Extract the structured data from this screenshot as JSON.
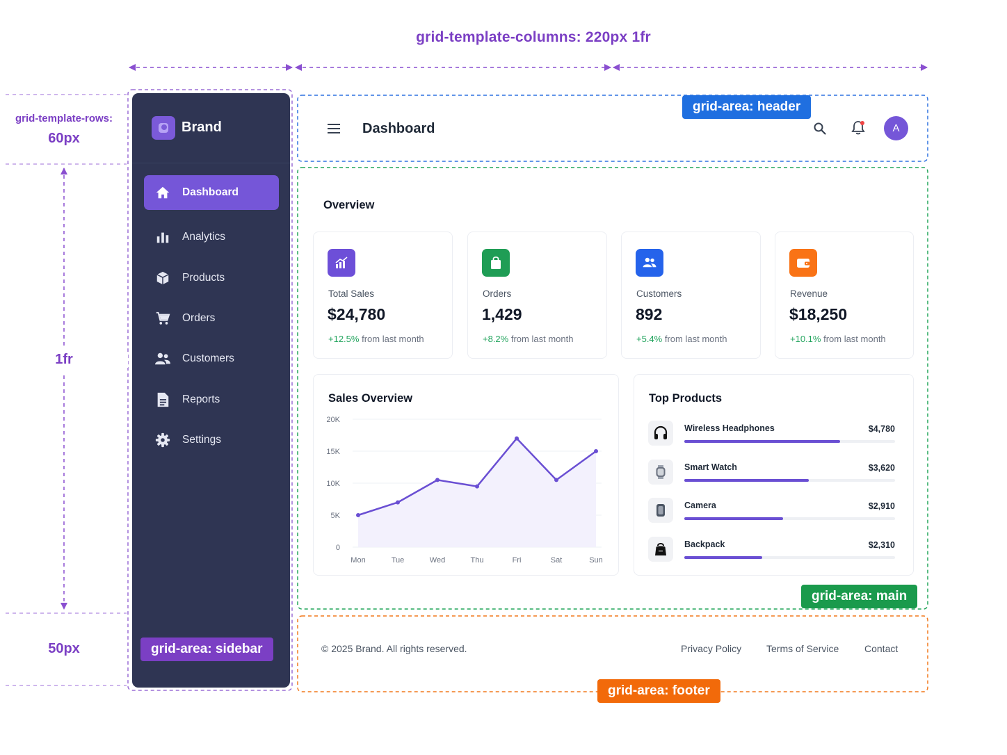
{
  "annotations": {
    "columns_label": "grid-template-columns: 220px 1fr",
    "rows_label": "grid-template-rows:",
    "row_header_size": "60px",
    "row_main_size": "1fr",
    "row_footer_size": "50px",
    "area_header": "grid-area: header",
    "area_main": "grid-area: main",
    "area_sidebar": "grid-area: sidebar",
    "area_footer": "grid-area: footer",
    "colors": {
      "purple": "#7b3fc4",
      "header": "#1f6fe0",
      "main": "#1a9a4c",
      "sidebar": "#7b3fc4",
      "footer": "#f26a0a"
    }
  },
  "sidebar": {
    "brand": "Brand",
    "brand_icon": "brand-logo-icon",
    "items": [
      {
        "label": "Dashboard",
        "icon": "home-icon",
        "active": true
      },
      {
        "label": "Analytics",
        "icon": "bar-chart-icon",
        "active": false
      },
      {
        "label": "Products",
        "icon": "box-icon",
        "active": false
      },
      {
        "label": "Orders",
        "icon": "cart-icon",
        "active": false
      },
      {
        "label": "Customers",
        "icon": "users-icon",
        "active": false
      },
      {
        "label": "Reports",
        "icon": "document-icon",
        "active": false
      },
      {
        "label": "Settings",
        "icon": "gear-icon",
        "active": false
      }
    ]
  },
  "header": {
    "title": "Dashboard",
    "avatar_initial": "A",
    "icons": [
      "menu-icon",
      "search-icon",
      "bell-icon"
    ]
  },
  "main": {
    "overview_title": "Overview",
    "stats": [
      {
        "label": "Total Sales",
        "value": "$24,780",
        "change": "+12.5%",
        "suffix": "from last month",
        "color": "#6d4fd8",
        "icon": "chart-icon"
      },
      {
        "label": "Orders",
        "value": "1,429",
        "change": "+8.2%",
        "suffix": "from last month",
        "color": "#1f9d55",
        "icon": "bag-icon"
      },
      {
        "label": "Customers",
        "value": "892",
        "change": "+5.4%",
        "suffix": "from last month",
        "color": "#2563eb",
        "icon": "users-icon"
      },
      {
        "label": "Revenue",
        "value": "$18,250",
        "change": "+10.1%",
        "suffix": "from last month",
        "color": "#f97316",
        "icon": "wallet-icon"
      }
    ],
    "sales_title": "Sales Overview",
    "top_products_title": "Top Products",
    "top_products": [
      {
        "name": "Wireless Headphones",
        "value": "$4,780",
        "share": 0.74,
        "icon": "headphones-icon"
      },
      {
        "name": "Smart Watch",
        "value": "$3,620",
        "share": 0.59,
        "icon": "watch-icon"
      },
      {
        "name": "Camera",
        "value": "$2,910",
        "share": 0.47,
        "icon": "camera-icon"
      },
      {
        "name": "Backpack",
        "value": "$2,310",
        "share": 0.37,
        "icon": "backpack-icon"
      }
    ]
  },
  "chart_data": {
    "type": "line",
    "title": "Sales Overview",
    "categories": [
      "Mon",
      "Tue",
      "Wed",
      "Thu",
      "Fri",
      "Sat",
      "Sun"
    ],
    "values": [
      5000,
      7000,
      10500,
      9500,
      17000,
      10500,
      15000
    ],
    "y_ticks": [
      "0",
      "5K",
      "10K",
      "15K",
      "20K"
    ],
    "ylim": [
      0,
      20000
    ],
    "grid": true,
    "line_color": "#6a4fd3"
  },
  "footer": {
    "copyright": "© 2025 Brand. All rights reserved.",
    "links": [
      "Privacy Policy",
      "Terms of Service",
      "Contact"
    ]
  }
}
